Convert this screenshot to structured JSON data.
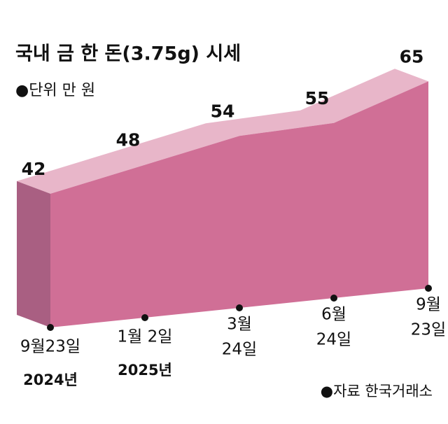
{
  "chart_data": {
    "type": "area3d",
    "title": "국내 금 한 돈(3.75g) 시세",
    "subtitle": "●단위 만 원",
    "source": "●자료 한국거래소",
    "categories": [
      [
        "9월23일"
      ],
      [
        "1월 2일"
      ],
      [
        "3월",
        "24일"
      ],
      [
        "6월",
        "24일"
      ],
      [
        "9월",
        "23일"
      ]
    ],
    "year_labels": [
      "2024년",
      "2025년",
      null,
      null,
      null
    ],
    "values": [
      42,
      48,
      54,
      55,
      65
    ],
    "colors": {
      "front": "#d06f96",
      "top": "#e8b6c9",
      "side": "#a95f82"
    }
  }
}
